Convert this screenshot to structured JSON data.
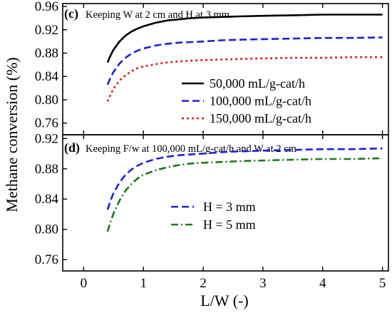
{
  "chart_data": {
    "type": "line",
    "shared_axes": {
      "xlabel": "L/W (-)",
      "ylabel": "Methane conversion (%)",
      "xlim": [
        -0.35,
        5.1
      ],
      "xticks": [
        "0",
        "1",
        "2",
        "3",
        "4",
        "5"
      ]
    },
    "panels": [
      {
        "tag": "(c)",
        "caption": "Keeping W at 2 cm and H at 3 mm",
        "ylim": [
          0.74,
          0.965
        ],
        "yticks": [
          "0.96",
          "0.92",
          "0.88",
          "0.84",
          "0.80",
          "0.76"
        ],
        "legend_position": "lower-right",
        "x": [
          0.4,
          0.45,
          0.5,
          0.6,
          0.7,
          0.8,
          0.9,
          1.0,
          1.2,
          1.4,
          1.6,
          1.8,
          2.0,
          2.3,
          2.6,
          3.0,
          3.5,
          4.0,
          4.5,
          5.0
        ],
        "series": [
          {
            "name": "50,000 mL/g-cat/h",
            "color": "#000000",
            "dash": "solid",
            "values": [
              0.864,
              0.876,
              0.886,
              0.9,
              0.91,
              0.917,
              0.922,
              0.926,
              0.932,
              0.936,
              0.938,
              0.94,
              0.941,
              0.942,
              0.943,
              0.944,
              0.945,
              0.946,
              0.946,
              0.946
            ]
          },
          {
            "name": "100,000 mL/g-cat/h",
            "color": "#1f1fd6",
            "dash": "dash",
            "values": [
              0.826,
              0.838,
              0.848,
              0.862,
              0.872,
              0.879,
              0.884,
              0.888,
              0.893,
              0.896,
              0.898,
              0.899,
              0.9,
              0.902,
              0.903,
              0.904,
              0.905,
              0.906,
              0.906,
              0.907
            ]
          },
          {
            "name": "150,000 mL/g-cat/h",
            "color": "#e21b1b",
            "dash": "dot",
            "values": [
              0.797,
              0.809,
              0.819,
              0.833,
              0.842,
              0.849,
              0.854,
              0.857,
              0.861,
              0.864,
              0.866,
              0.867,
              0.868,
              0.869,
              0.87,
              0.871,
              0.872,
              0.872,
              0.873,
              0.873
            ]
          }
        ]
      },
      {
        "tag": "(d)",
        "caption": "Keeping F/w at 100,000 mL/g-cat/h and W at 2 cm",
        "ylim": [
          0.745,
          0.925
        ],
        "yticks": [
          "0.92",
          "0.88",
          "0.84",
          "0.80",
          "0.76"
        ],
        "legend_position": "center-right",
        "x": [
          0.4,
          0.45,
          0.5,
          0.6,
          0.7,
          0.8,
          0.9,
          1.0,
          1.2,
          1.4,
          1.6,
          1.8,
          2.0,
          2.3,
          2.6,
          3.0,
          3.5,
          4.0,
          4.5,
          5.0
        ],
        "series": [
          {
            "name": "H = 3 mm",
            "color": "#1f1fd6",
            "dash": "dash",
            "values": [
              0.826,
              0.838,
              0.848,
              0.862,
              0.872,
              0.879,
              0.884,
              0.888,
              0.893,
              0.896,
              0.898,
              0.899,
              0.9,
              0.902,
              0.903,
              0.904,
              0.905,
              0.906,
              0.906,
              0.907
            ]
          },
          {
            "name": "H = 5 mm",
            "color": "#1a7a1a",
            "dash": "dashdot",
            "values": [
              0.797,
              0.81,
              0.821,
              0.838,
              0.851,
              0.86,
              0.867,
              0.872,
              0.878,
              0.882,
              0.885,
              0.887,
              0.888,
              0.889,
              0.89,
              0.891,
              0.892,
              0.893,
              0.893,
              0.894
            ]
          }
        ]
      }
    ]
  }
}
